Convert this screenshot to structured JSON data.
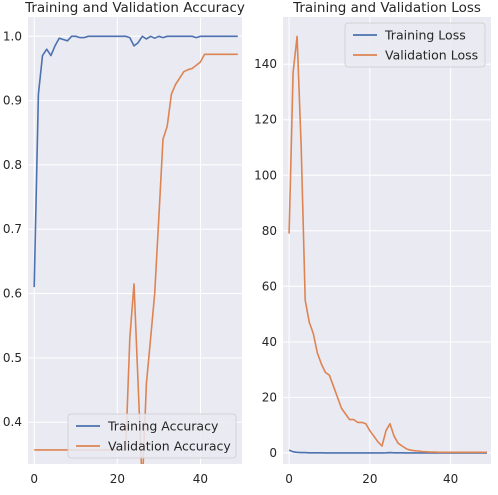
{
  "chart_data": [
    {
      "type": "line",
      "title": "Training and Validation Accuracy",
      "xlabel": "",
      "ylabel": "",
      "xlim": [
        -1.5,
        50
      ],
      "ylim": [
        0.335,
        1.03
      ],
      "xticks": [
        0,
        20,
        40
      ],
      "yticks": [
        0.4,
        0.5,
        0.6,
        0.7,
        0.8,
        0.9,
        1.0
      ],
      "ytick_labels": [
        "0.4",
        "0.5",
        "0.6",
        "0.7",
        "0.8",
        "0.9",
        "1.0"
      ],
      "grid": true,
      "legend_position": "lower-right",
      "series": [
        {
          "name": "Training Accuracy",
          "color": "#4c72b0",
          "x": [
            0,
            1,
            2,
            3,
            4,
            5,
            6,
            7,
            8,
            9,
            10,
            11,
            12,
            13,
            14,
            15,
            16,
            17,
            18,
            19,
            20,
            21,
            22,
            23,
            24,
            25,
            26,
            27,
            28,
            29,
            30,
            31,
            32,
            33,
            34,
            35,
            36,
            37,
            38,
            39,
            40,
            41,
            42,
            43,
            44,
            45,
            46,
            47,
            48,
            49
          ],
          "y": [
            0.61,
            0.91,
            0.97,
            0.98,
            0.97,
            0.985,
            0.997,
            0.995,
            0.993,
            1.0,
            1.0,
            0.998,
            0.998,
            1.0,
            1.0,
            1.0,
            1.0,
            1.0,
            1.0,
            1.0,
            1.0,
            1.0,
            1.0,
            0.998,
            0.985,
            0.99,
            1.0,
            0.996,
            1.0,
            0.997,
            1.0,
            0.998,
            1.0,
            1.0,
            1.0,
            1.0,
            1.0,
            1.0,
            1.0,
            0.998,
            1.0,
            1.0,
            1.0,
            1.0,
            1.0,
            1.0,
            1.0,
            1.0,
            1.0,
            1.0
          ]
        },
        {
          "name": "Validation Accuracy",
          "color": "#dd8452",
          "x": [
            0,
            1,
            2,
            3,
            4,
            5,
            6,
            7,
            8,
            9,
            10,
            11,
            12,
            13,
            14,
            15,
            16,
            17,
            18,
            19,
            20,
            21,
            22,
            23,
            24,
            25,
            26,
            27,
            28,
            29,
            30,
            31,
            32,
            33,
            34,
            35,
            36,
            37,
            38,
            39,
            40,
            41,
            42,
            43,
            44,
            45,
            46,
            47,
            48,
            49
          ],
          "y": [
            0.357,
            0.357,
            0.357,
            0.357,
            0.357,
            0.357,
            0.357,
            0.357,
            0.357,
            0.357,
            0.357,
            0.357,
            0.357,
            0.357,
            0.357,
            0.357,
            0.357,
            0.357,
            0.357,
            0.357,
            0.357,
            0.357,
            0.357,
            0.53,
            0.615,
            0.46,
            0.3,
            0.46,
            0.53,
            0.6,
            0.72,
            0.84,
            0.86,
            0.91,
            0.925,
            0.935,
            0.945,
            0.948,
            0.95,
            0.955,
            0.96,
            0.972,
            0.972,
            0.972,
            0.972,
            0.972,
            0.972,
            0.972,
            0.972,
            0.972
          ]
        }
      ]
    },
    {
      "type": "line",
      "title": "Training and Validation Loss",
      "xlabel": "",
      "ylabel": "",
      "xlim": [
        -1.5,
        50
      ],
      "ylim": [
        -4,
        157
      ],
      "xticks": [
        0,
        20,
        40
      ],
      "yticks": [
        0,
        20,
        40,
        60,
        80,
        100,
        120,
        140
      ],
      "ytick_labels": [
        "0",
        "20",
        "40",
        "60",
        "80",
        "100",
        "120",
        "140"
      ],
      "grid": true,
      "legend_position": "top-right",
      "series": [
        {
          "name": "Training Loss",
          "color": "#4c72b0",
          "x": [
            0,
            1,
            2,
            3,
            4,
            5,
            6,
            7,
            8,
            9,
            10,
            11,
            12,
            13,
            14,
            15,
            16,
            17,
            18,
            19,
            20,
            21,
            22,
            23,
            24,
            25,
            26,
            27,
            28,
            29,
            30,
            31,
            32,
            33,
            34,
            35,
            36,
            37,
            38,
            39,
            40,
            41,
            42,
            43,
            44,
            45,
            46,
            47,
            48,
            49
          ],
          "y": [
            1.0,
            0.4,
            0.2,
            0.1,
            0.1,
            0.05,
            0.02,
            0.02,
            0.02,
            0.01,
            0.01,
            0.01,
            0.01,
            0.01,
            0.01,
            0.01,
            0.01,
            0.01,
            0.01,
            0.01,
            0.01,
            0.01,
            0.01,
            0.01,
            0.05,
            0.1,
            0.05,
            0.02,
            0.02,
            0.01,
            0.01,
            0.01,
            0.01,
            0.01,
            0.01,
            0.01,
            0.01,
            0.01,
            0.01,
            0.01,
            0.01,
            0.01,
            0.01,
            0.01,
            0.01,
            0.01,
            0.01,
            0.01,
            0.01,
            0.01
          ]
        },
        {
          "name": "Validation Loss",
          "color": "#dd8452",
          "x": [
            0,
            1,
            2,
            3,
            4,
            5,
            6,
            7,
            8,
            9,
            10,
            11,
            12,
            13,
            14,
            15,
            16,
            17,
            18,
            19,
            20,
            21,
            22,
            23,
            24,
            25,
            26,
            27,
            28,
            29,
            30,
            31,
            32,
            33,
            34,
            35,
            36,
            37,
            38,
            39,
            40,
            41,
            42,
            43,
            44,
            45,
            46,
            47,
            48,
            49
          ],
          "y": [
            79,
            137,
            150,
            110,
            55,
            47,
            43,
            36,
            32,
            29,
            28,
            24,
            20,
            16,
            14,
            12,
            12,
            11,
            11,
            10.5,
            8,
            6,
            4,
            2.5,
            8,
            10.5,
            6,
            3.5,
            2.5,
            1.5,
            1,
            0.8,
            0.7,
            0.5,
            0.4,
            0.3,
            0.3,
            0.2,
            0.2,
            0.2,
            0.2,
            0.2,
            0.2,
            0.2,
            0.2,
            0.2,
            0.2,
            0.2,
            0.2,
            0.2
          ]
        }
      ]
    }
  ]
}
